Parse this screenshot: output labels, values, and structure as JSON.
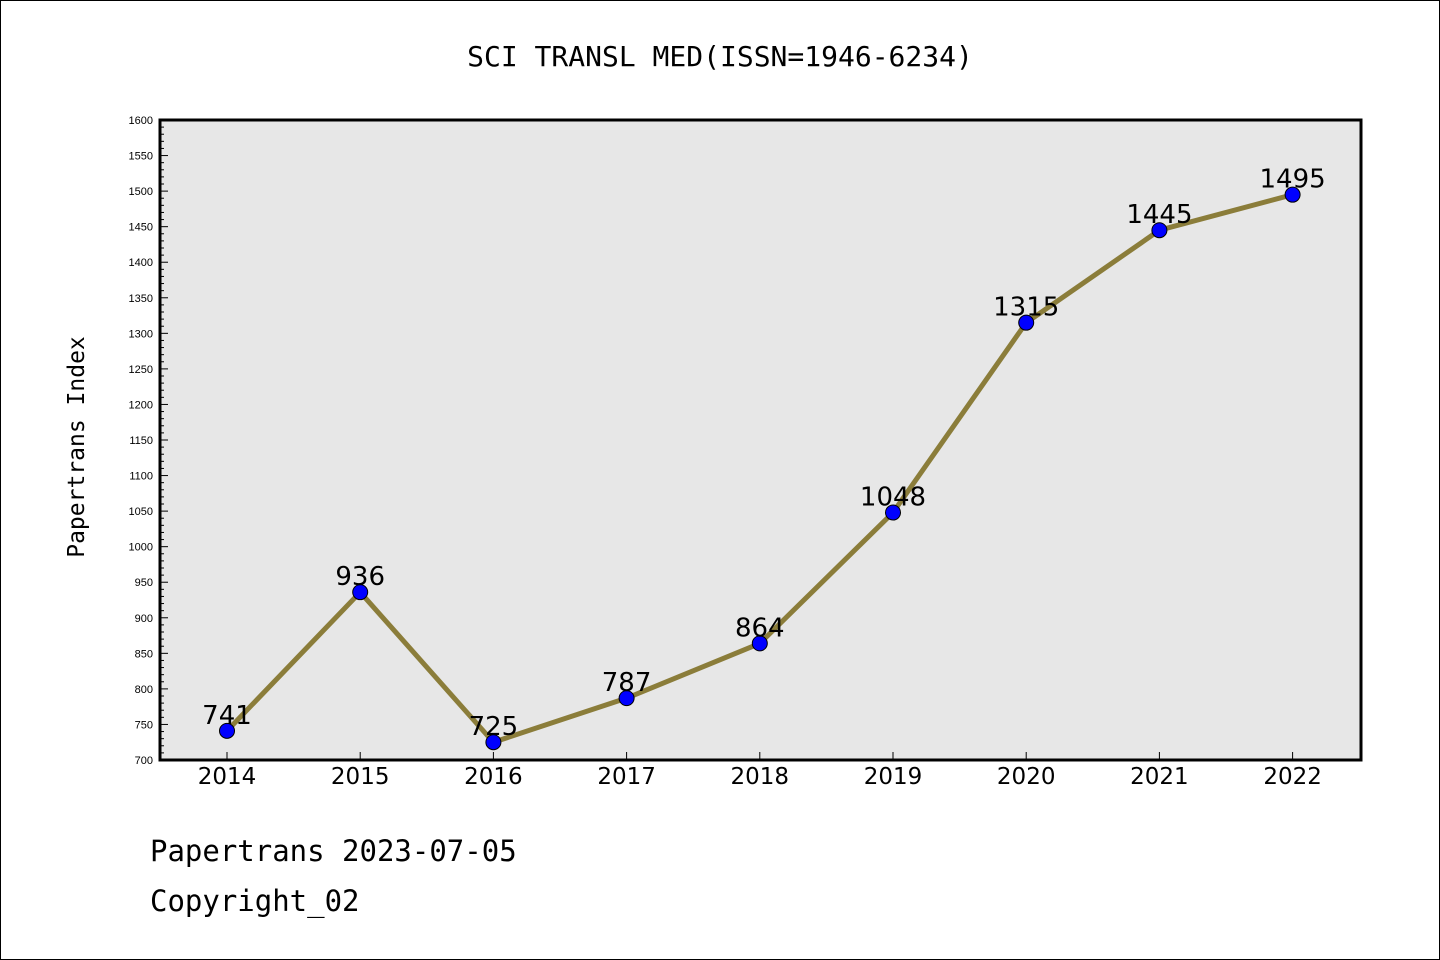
{
  "chart_data": {
    "type": "line",
    "title": "SCI TRANSL MED(ISSN=1946-6234)",
    "xlabel": "",
    "ylabel": "Papertrans Index",
    "x": [
      "2014",
      "2015",
      "2016",
      "2017",
      "2018",
      "2019",
      "2020",
      "2021",
      "2022"
    ],
    "series": [
      {
        "values": [
          741,
          936,
          725,
          787,
          864,
          1048,
          1315,
          1445,
          1495
        ]
      }
    ],
    "data_labels": [
      "741",
      "936",
      "725",
      "787",
      "864",
      "1048",
      "1315",
      "1445",
      "1495"
    ],
    "ylim": [
      700,
      1600
    ],
    "yticks": [
      700,
      750,
      800,
      850,
      900,
      950,
      1000,
      1050,
      1100,
      1150,
      1200,
      1250,
      1300,
      1350,
      1400,
      1450,
      1500,
      1550,
      1600
    ],
    "ytick_labels": [
      "700",
      "750",
      "800",
      "850",
      "900",
      "950",
      "1000",
      "1050",
      "1100",
      "1150",
      "1200",
      "1250",
      "1300",
      "1350",
      "1400",
      "1450",
      "1500",
      "1550",
      "1600"
    ],
    "grid": false,
    "legend": "none",
    "colors": {
      "line": "#8b7d3a",
      "marker": "#0000ff",
      "plot_background": "#e7e7e7"
    }
  },
  "footer": {
    "source": "Papertrans 2023-07-05",
    "copyright": "Copyright_02"
  }
}
